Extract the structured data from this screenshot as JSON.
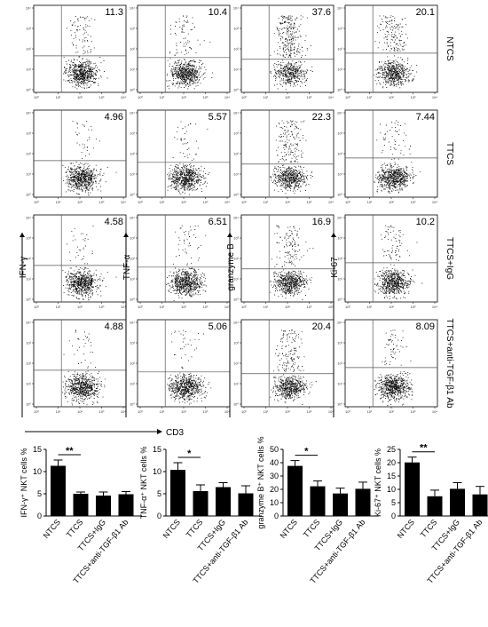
{
  "flow": {
    "rows": [
      "NTCS",
      "TTCS",
      "TTCS+IgG",
      "TTCS+anti-TGF-β1 Ab"
    ],
    "markers": [
      "IFN-γ",
      "TNF-α",
      "granzyme B",
      "Ki-67"
    ],
    "x_marker": "CD3",
    "percentages": [
      [
        "11.3",
        "10.4",
        "37.6",
        "20.1"
      ],
      [
        "4.96",
        "5.57",
        "22.3",
        "7.44"
      ],
      [
        "4.58",
        "6.51",
        "16.9",
        "10.2"
      ],
      [
        "4.88",
        "5.06",
        "20.4",
        "8.09"
      ]
    ],
    "x_ticks": [
      "10⁰",
      "10¹",
      "10²",
      "10³",
      "10⁴"
    ],
    "y_ticks": [
      "10⁰",
      "10¹",
      "10²",
      "10³",
      "10⁴"
    ]
  },
  "chart_data": [
    {
      "type": "bar",
      "ylabel": "IFN-γ⁺ NKT cells %",
      "categories": [
        "NTCS",
        "TTCS",
        "TTCS+IgG",
        "TTCS+anti-TGF-β1 Ab"
      ],
      "values": [
        11.3,
        5.0,
        4.6,
        4.9
      ],
      "errors": [
        1.3,
        0.4,
        0.8,
        0.6
      ],
      "ylim": [
        0,
        15
      ],
      "yticks": [
        0,
        5,
        10,
        15
      ],
      "significance": {
        "from": 0,
        "to": 1,
        "label": "**"
      }
    },
    {
      "type": "bar",
      "ylabel": "TNF-α⁺ NKT cells %",
      "categories": [
        "NTCS",
        "TTCS",
        "TTCS+IgG",
        "TTCS+anti-TGF-β1 Ab"
      ],
      "values": [
        10.4,
        5.6,
        6.5,
        5.1
      ],
      "errors": [
        1.6,
        1.4,
        1.0,
        1.7
      ],
      "ylim": [
        0,
        15
      ],
      "yticks": [
        0,
        5,
        10,
        15
      ],
      "significance": {
        "from": 0,
        "to": 1,
        "label": "*"
      }
    },
    {
      "type": "bar",
      "ylabel": "granzyme B⁺ NKT cells %",
      "categories": [
        "NTCS",
        "TTCS",
        "TTCS+IgG",
        "TTCS+anti-TGF-β1 Ab"
      ],
      "values": [
        37.6,
        22.3,
        16.9,
        20.4
      ],
      "errors": [
        4.0,
        4.0,
        4.0,
        5.0
      ],
      "ylim": [
        0,
        50
      ],
      "yticks": [
        0,
        10,
        20,
        30,
        40,
        50
      ],
      "significance": {
        "from": 0,
        "to": 1,
        "label": "*"
      }
    },
    {
      "type": "bar",
      "ylabel": "Ki-67⁺ NKT cells %",
      "categories": [
        "NTCS",
        "TTCS",
        "TTCS+IgG",
        "TTCS+anti-TGF-β1 Ab"
      ],
      "values": [
        20.1,
        7.4,
        10.2,
        8.1
      ],
      "errors": [
        2.0,
        2.3,
        2.3,
        3.0
      ],
      "ylim": [
        0,
        25
      ],
      "yticks": [
        0,
        5,
        10,
        15,
        20,
        25
      ],
      "significance": {
        "from": 0,
        "to": 1,
        "label": "**"
      }
    }
  ]
}
